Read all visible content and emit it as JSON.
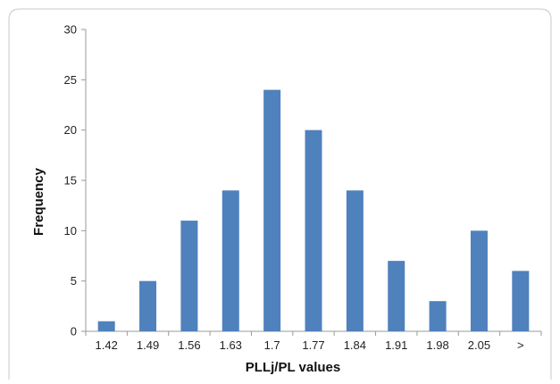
{
  "chart_data": {
    "type": "bar",
    "title": "",
    "xlabel": "PLLj/PL values",
    "ylabel": "Frequency",
    "categories": [
      "1.42",
      "1.49",
      "1.56",
      "1.63",
      "1.7",
      "1.77",
      "1.84",
      "1.91",
      "1.98",
      "2.05",
      ">"
    ],
    "values": [
      1,
      5,
      11,
      14,
      24,
      20,
      14,
      7,
      3,
      10,
      6
    ],
    "ylim": [
      0,
      30
    ],
    "yticks": [
      0,
      5,
      10,
      15,
      20,
      25,
      30
    ],
    "grid": false,
    "legend": "none",
    "colors": {
      "bar": "#4f81bd",
      "frame": "#c8c8c8",
      "axis": "#9a9a9a"
    }
  }
}
